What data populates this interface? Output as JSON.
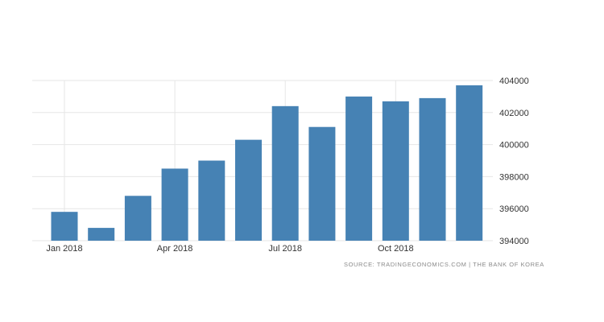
{
  "chart_data": {
    "type": "bar",
    "categories": [
      "Jan 2018",
      "Feb 2018",
      "Mar 2018",
      "Apr 2018",
      "May 2018",
      "Jun 2018",
      "Jul 2018",
      "Aug 2018",
      "Sep 2018",
      "Oct 2018",
      "Nov 2018",
      "Dec 2018"
    ],
    "values": [
      395800,
      394800,
      396800,
      398500,
      399000,
      400300,
      402400,
      401100,
      403000,
      402700,
      402900,
      403700
    ],
    "x_tick_labels": [
      "Jan 2018",
      "Apr 2018",
      "Jul 2018",
      "Oct 2018"
    ],
    "y_tick_labels": [
      "394000",
      "396000",
      "398000",
      "400000",
      "402000",
      "404000"
    ],
    "ylim": [
      394000,
      404000
    ],
    "y_axis_side": "right",
    "grid": true,
    "title": "",
    "xlabel": "",
    "ylabel": "",
    "bar_color": "#4682b4",
    "grid_color": "#e6e6e6",
    "source": "SOURCE: TRADINGECONOMICS.COM | THE BANK OF KOREA"
  }
}
